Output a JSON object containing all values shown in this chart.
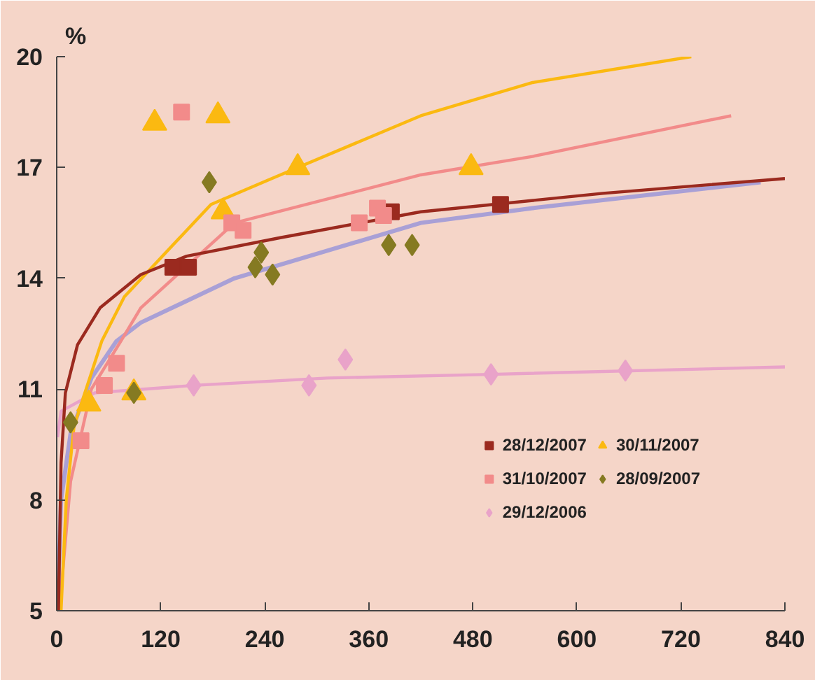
{
  "chart_data": {
    "type": "scatter",
    "ylabel": "%",
    "xlim": [
      0,
      840
    ],
    "ylim": [
      5,
      20
    ],
    "xticks": [
      0,
      120,
      240,
      360,
      480,
      600,
      720,
      840
    ],
    "yticks": [
      5,
      8,
      11,
      14,
      17,
      20
    ],
    "grid": false,
    "legend": "bottom right",
    "series": [
      {
        "type": "line",
        "color": "#a9a0d6",
        "x": [
          1,
          5,
          16,
          40,
          69,
          97,
          205,
          420,
          549,
          812
        ],
        "values": [
          5.0,
          8.0,
          9.8,
          11.3,
          12.3,
          12.8,
          14.0,
          15.5,
          15.9,
          16.6
        ]
      },
      {
        "type": "line",
        "color": "#e9a3c9",
        "x": [
          1,
          5,
          44,
          158,
          312,
          501,
          840
        ],
        "values": [
          9.7,
          10.4,
          10.9,
          11.1,
          11.3,
          11.4,
          11.6
        ]
      },
      {
        "type": "line",
        "color": "#f28b8a",
        "x": [
          3,
          16,
          40,
          74,
          97,
          205,
          420,
          549,
          778
        ],
        "values": [
          5.0,
          8.5,
          11.0,
          12.3,
          13.2,
          15.5,
          16.8,
          17.3,
          18.4
        ]
      },
      {
        "type": "line",
        "color": "#fbb911",
        "x": [
          5,
          11,
          20,
          52,
          78,
          178,
          278,
          420,
          549,
          732
        ],
        "values": [
          5.0,
          8.0,
          10.0,
          12.3,
          13.5,
          16.0,
          17.0,
          18.4,
          19.3,
          20.0
        ]
      },
      {
        "type": "line",
        "color": "#9b2a1f",
        "x": [
          2,
          5,
          10,
          24,
          50,
          97,
          150,
          258,
          420,
          630,
          840
        ],
        "values": [
          5.0,
          9.0,
          10.9,
          12.2,
          13.2,
          14.1,
          14.6,
          15.1,
          15.8,
          16.3,
          16.7
        ]
      },
      {
        "name": "28/12/2007",
        "marker": "square",
        "color": "#9b2a1f",
        "x": [
          134,
          152,
          386,
          512
        ],
        "values": [
          14.3,
          14.3,
          15.8,
          16.0
        ]
      },
      {
        "name": "30/11/2007",
        "marker": "triangle",
        "color": "#fbb911",
        "x": [
          37,
          89,
          113,
          186,
          192,
          278,
          478
        ],
        "values": [
          10.6,
          10.9,
          18.2,
          18.4,
          15.8,
          17.0,
          17.0
        ]
      },
      {
        "name": "31/10/2007",
        "marker": "square",
        "color": "#f28b8a",
        "x": [
          28,
          55,
          69,
          144,
          202,
          215,
          349,
          370,
          377
        ],
        "values": [
          9.6,
          11.1,
          11.7,
          18.5,
          15.5,
          15.3,
          15.5,
          15.9,
          15.7
        ]
      },
      {
        "name": "28/09/2007",
        "marker": "diamond",
        "color": "#857a22",
        "x": [
          16,
          89,
          176,
          229,
          236,
          249,
          383,
          410
        ],
        "values": [
          10.1,
          10.9,
          16.6,
          14.3,
          14.7,
          14.1,
          14.9,
          14.9
        ]
      },
      {
        "name": "29/12/2006",
        "marker": "diamond",
        "color": "#e9a3c9",
        "x": [
          158,
          291,
          333,
          501,
          656
        ],
        "values": [
          11.1,
          11.1,
          11.8,
          11.4,
          11.5
        ]
      }
    ]
  }
}
